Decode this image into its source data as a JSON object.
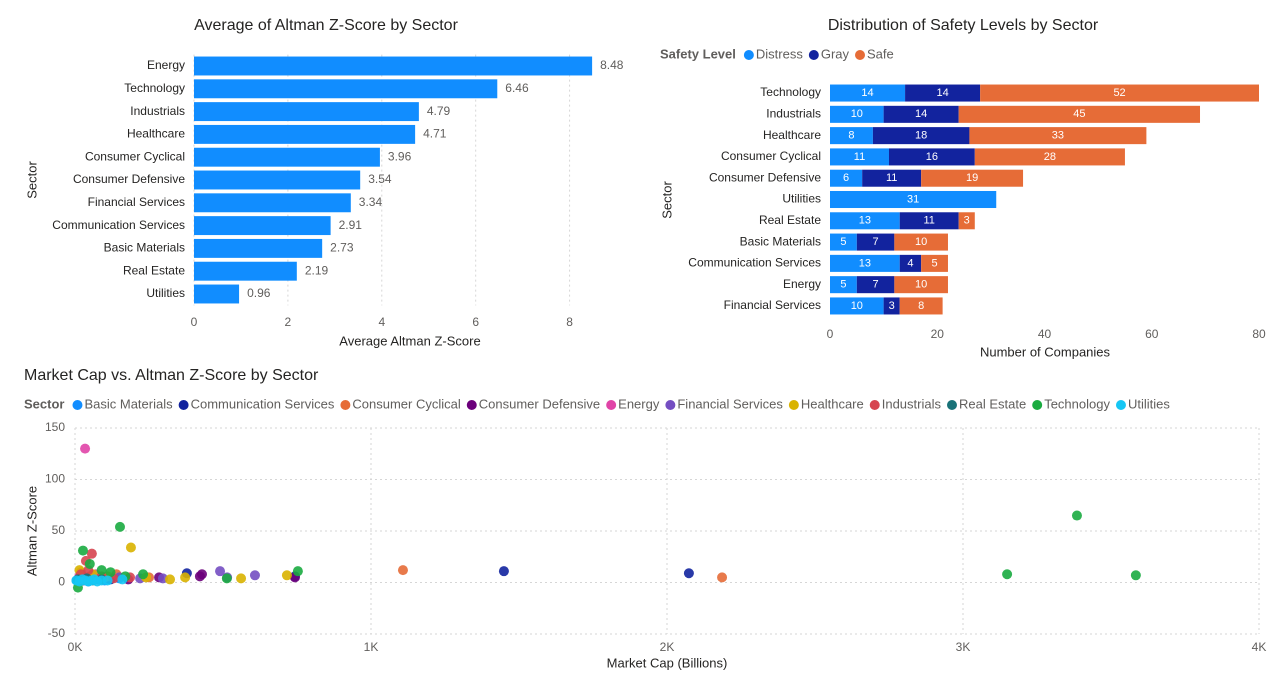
{
  "chart_data": [
    {
      "type": "bar",
      "title": "Average of Altman Z-Score by Sector",
      "x_label": "Average Altman Z-Score",
      "y_label": "Sector",
      "categories": [
        "Energy",
        "Technology",
        "Industrials",
        "Healthcare",
        "Consumer Cyclical",
        "Consumer Defensive",
        "Financial Services",
        "Communication Services",
        "Basic Materials",
        "Real Estate",
        "Utilities"
      ],
      "values": [
        8.48,
        6.46,
        4.79,
        4.71,
        3.96,
        3.54,
        3.34,
        2.91,
        2.73,
        2.19,
        0.96
      ],
      "color": "#118DFF",
      "xlim": [
        0,
        9.5
      ],
      "xticks": [
        0,
        2,
        4,
        6,
        8
      ],
      "grid": true
    },
    {
      "type": "stacked_bar",
      "title": "Distribution of Safety Levels by Sector",
      "x_label": "Number of Companies",
      "y_label": "Sector",
      "legend_title": "Safety Level",
      "categories": [
        "Technology",
        "Industrials",
        "Healthcare",
        "Consumer Cyclical",
        "Consumer Defensive",
        "Utilities",
        "Real Estate",
        "Basic Materials",
        "Communication Services",
        "Energy",
        "Financial Services"
      ],
      "series": [
        {
          "name": "Distress",
          "color": "#118DFF",
          "values": [
            14,
            10,
            8,
            11,
            6,
            31,
            13,
            5,
            13,
            5,
            10
          ]
        },
        {
          "name": "Gray",
          "color": "#12239E",
          "values": [
            14,
            14,
            18,
            16,
            11,
            null,
            11,
            7,
            4,
            7,
            3
          ]
        },
        {
          "name": "Safe",
          "color": "#E66C37",
          "values": [
            52,
            45,
            33,
            28,
            19,
            null,
            3,
            10,
            5,
            10,
            8
          ]
        }
      ],
      "xlim": [
        0,
        80
      ],
      "xticks": [
        0,
        20,
        40,
        60,
        80
      ],
      "grid": false
    },
    {
      "type": "scatter",
      "title": "Market Cap vs. Altman Z-Score by Sector",
      "x_label": "Market Cap (Billions)",
      "y_label": "Altman Z-Score",
      "legend_title": "Sector",
      "series": [
        {
          "name": "Basic Materials",
          "color": "#118DFF",
          "x": [
            5,
            12,
            20,
            30,
            45,
            60,
            80,
            100,
            150
          ],
          "values": [
            2,
            4,
            3,
            5,
            1,
            6,
            3,
            2,
            4
          ]
        },
        {
          "name": "Communication Services",
          "color": "#12239E",
          "x": [
            1449,
            2074,
            378,
            743,
            60,
            120,
            25
          ],
          "values": [
            11,
            9,
            9,
            6,
            4,
            3,
            5
          ]
        },
        {
          "name": "Consumer Cyclical",
          "color": "#E66C37",
          "x": [
            1108,
            2186,
            50,
            90,
            140,
            20,
            250
          ],
          "values": [
            12,
            5,
            6,
            4,
            8,
            10,
            5
          ]
        },
        {
          "name": "Consumer Defensive",
          "color": "#6B007B",
          "x": [
            429,
            422,
            284,
            743,
            100,
            60,
            180
          ],
          "values": [
            8,
            6,
            5,
            5,
            4,
            7,
            3
          ]
        },
        {
          "name": "Energy",
          "color": "#E044A7",
          "x": [
            34,
            15,
            40,
            70,
            100
          ],
          "values": [
            130,
            6,
            4,
            8,
            5
          ]
        },
        {
          "name": "Financial Services",
          "color": "#744EC2",
          "x": [
            490,
            608,
            514,
            297,
            30,
            80,
            150,
            220
          ],
          "values": [
            11,
            7,
            5,
            4,
            2,
            3,
            5,
            4
          ]
        },
        {
          "name": "Healthcare",
          "color": "#D9B300",
          "x": [
            189,
            716,
            561,
            372,
            321,
            15,
            60,
            110,
            240
          ],
          "values": [
            34,
            7,
            4,
            5,
            3,
            12,
            8,
            6,
            5
          ]
        },
        {
          "name": "Industrials",
          "color": "#D64550",
          "x": [
            57,
            37,
            186,
            20,
            90,
            130,
            45
          ],
          "values": [
            28,
            21,
            5,
            8,
            6,
            4,
            12
          ]
        },
        {
          "name": "Real Estate",
          "color": "#197278",
          "x": [
            10,
            25,
            40,
            60,
            90
          ],
          "values": [
            3,
            2,
            4,
            2,
            3
          ]
        },
        {
          "name": "Technology",
          "color": "#1AAB40",
          "x": [
            3385,
            3149,
            3584,
            152,
            27,
            753,
            513,
            10,
            50,
            90,
            120,
            170,
            230
          ],
          "values": [
            65,
            8,
            7,
            54,
            31,
            11,
            4,
            -5,
            18,
            12,
            10,
            6,
            8
          ]
        },
        {
          "name": "Utilities",
          "color": "#15C6F4",
          "x": [
            5,
            15,
            25,
            35,
            45,
            55,
            65,
            75,
            90,
            110,
            160
          ],
          "values": [
            2,
            1,
            3,
            2,
            1,
            2,
            3,
            1,
            2,
            2,
            3
          ]
        }
      ],
      "xlim": [
        0,
        4000
      ],
      "xticks": [
        {
          "value": 0,
          "label": "0K"
        },
        {
          "value": 1000,
          "label": "1K"
        },
        {
          "value": 2000,
          "label": "2K"
        },
        {
          "value": 3000,
          "label": "3K"
        },
        {
          "value": 4000,
          "label": "4K"
        }
      ],
      "ylim": [
        -50,
        150
      ],
      "yticks": [
        -50,
        0,
        50,
        100,
        150
      ],
      "grid": true
    }
  ]
}
